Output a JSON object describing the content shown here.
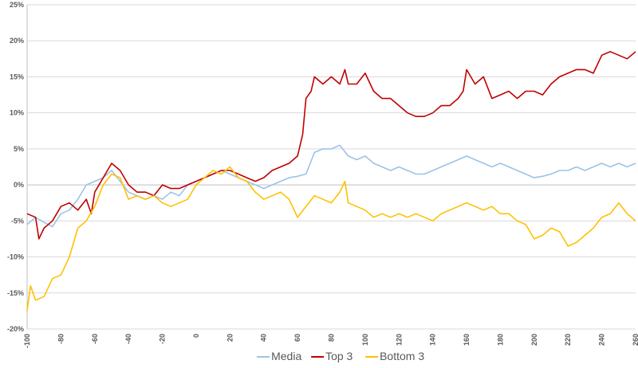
{
  "chart_data": {
    "type": "line",
    "title": "",
    "xlabel": "",
    "ylabel": "",
    "xlim": [
      -100,
      260
    ],
    "ylim": [
      -20,
      25
    ],
    "x_ticks": [
      -100,
      -80,
      -60,
      -40,
      -20,
      0,
      20,
      40,
      60,
      80,
      100,
      120,
      140,
      160,
      180,
      200,
      220,
      240,
      260
    ],
    "y_ticks": [
      -20,
      -15,
      -10,
      -5,
      0,
      5,
      10,
      15,
      20,
      25
    ],
    "y_tick_labels": [
      "-20%",
      "-15%",
      "-10%",
      "-5%",
      "0%",
      "5%",
      "10%",
      "15%",
      "20%",
      "25%"
    ],
    "grid": "horizontal",
    "legend_position": "bottom",
    "series": [
      {
        "name": "Media",
        "color": "#9dc3e6",
        "points": [
          [
            -100,
            -5.5
          ],
          [
            -95,
            -4.5
          ],
          [
            -90,
            -5.2
          ],
          [
            -85,
            -5.8
          ],
          [
            -80,
            -4
          ],
          [
            -75,
            -3.5
          ],
          [
            -70,
            -2
          ],
          [
            -65,
            0
          ],
          [
            -60,
            0.5
          ],
          [
            -55,
            1
          ],
          [
            -50,
            2
          ],
          [
            -45,
            0.5
          ],
          [
            -40,
            -1
          ],
          [
            -35,
            -1.5
          ],
          [
            -30,
            -2
          ],
          [
            -25,
            -1.5
          ],
          [
            -20,
            -2
          ],
          [
            -15,
            -1
          ],
          [
            -10,
            -1.5
          ],
          [
            -5,
            0
          ],
          [
            0,
            0.5
          ],
          [
            5,
            1
          ],
          [
            10,
            1.5
          ],
          [
            15,
            2
          ],
          [
            20,
            1.5
          ],
          [
            25,
            1
          ],
          [
            30,
            0.5
          ],
          [
            35,
            0
          ],
          [
            40,
            -0.5
          ],
          [
            45,
            0
          ],
          [
            50,
            0.5
          ],
          [
            55,
            1
          ],
          [
            60,
            1.2
          ],
          [
            65,
            1.5
          ],
          [
            70,
            4.5
          ],
          [
            75,
            5
          ],
          [
            80,
            5
          ],
          [
            85,
            5.5
          ],
          [
            90,
            4
          ],
          [
            95,
            3.5
          ],
          [
            100,
            4
          ],
          [
            105,
            3
          ],
          [
            110,
            2.5
          ],
          [
            115,
            2
          ],
          [
            120,
            2.5
          ],
          [
            125,
            2
          ],
          [
            130,
            1.5
          ],
          [
            135,
            1.5
          ],
          [
            140,
            2
          ],
          [
            145,
            2.5
          ],
          [
            150,
            3
          ],
          [
            155,
            3.5
          ],
          [
            160,
            4
          ],
          [
            165,
            3.5
          ],
          [
            170,
            3
          ],
          [
            175,
            2.5
          ],
          [
            180,
            3
          ],
          [
            185,
            2.5
          ],
          [
            190,
            2
          ],
          [
            195,
            1.5
          ],
          [
            200,
            1
          ],
          [
            205,
            1.2
          ],
          [
            210,
            1.5
          ],
          [
            215,
            2
          ],
          [
            220,
            2
          ],
          [
            225,
            2.5
          ],
          [
            230,
            2
          ],
          [
            235,
            2.5
          ],
          [
            240,
            3
          ],
          [
            245,
            2.5
          ],
          [
            250,
            3
          ],
          [
            255,
            2.5
          ],
          [
            260,
            3
          ]
        ]
      },
      {
        "name": "Top 3",
        "color": "#c00000",
        "points": [
          [
            -100,
            -4
          ],
          [
            -95,
            -4.5
          ],
          [
            -93,
            -7.5
          ],
          [
            -90,
            -6
          ],
          [
            -85,
            -5
          ],
          [
            -80,
            -3
          ],
          [
            -75,
            -2.5
          ],
          [
            -70,
            -3.5
          ],
          [
            -65,
            -2
          ],
          [
            -62,
            -4
          ],
          [
            -60,
            -1
          ],
          [
            -55,
            1
          ],
          [
            -50,
            3
          ],
          [
            -45,
            2
          ],
          [
            -40,
            0
          ],
          [
            -35,
            -1
          ],
          [
            -30,
            -1
          ],
          [
            -25,
            -1.5
          ],
          [
            -20,
            0
          ],
          [
            -15,
            -0.5
          ],
          [
            -10,
            -0.5
          ],
          [
            -5,
            0
          ],
          [
            0,
            0.5
          ],
          [
            5,
            1
          ],
          [
            10,
            1.5
          ],
          [
            15,
            2
          ],
          [
            20,
            2
          ],
          [
            25,
            1.5
          ],
          [
            30,
            1
          ],
          [
            35,
            0.5
          ],
          [
            40,
            1
          ],
          [
            45,
            2
          ],
          [
            50,
            2.5
          ],
          [
            55,
            3
          ],
          [
            60,
            4
          ],
          [
            63,
            7
          ],
          [
            65,
            12
          ],
          [
            68,
            13
          ],
          [
            70,
            15
          ],
          [
            75,
            14
          ],
          [
            80,
            15
          ],
          [
            85,
            14
          ],
          [
            88,
            16
          ],
          [
            90,
            14
          ],
          [
            95,
            14
          ],
          [
            100,
            15.5
          ],
          [
            105,
            13
          ],
          [
            110,
            12
          ],
          [
            115,
            12
          ],
          [
            120,
            11
          ],
          [
            125,
            10
          ],
          [
            130,
            9.5
          ],
          [
            135,
            9.5
          ],
          [
            140,
            10
          ],
          [
            145,
            11
          ],
          [
            150,
            11
          ],
          [
            155,
            12
          ],
          [
            158,
            13
          ],
          [
            160,
            16
          ],
          [
            165,
            14
          ],
          [
            170,
            15
          ],
          [
            175,
            12
          ],
          [
            180,
            12.5
          ],
          [
            185,
            13
          ],
          [
            190,
            12
          ],
          [
            195,
            13
          ],
          [
            200,
            13
          ],
          [
            205,
            12.5
          ],
          [
            210,
            14
          ],
          [
            215,
            15
          ],
          [
            220,
            15.5
          ],
          [
            225,
            16
          ],
          [
            230,
            16
          ],
          [
            235,
            15.5
          ],
          [
            240,
            18
          ],
          [
            245,
            18.5
          ],
          [
            250,
            18
          ],
          [
            255,
            17.5
          ],
          [
            260,
            18.5
          ]
        ]
      },
      {
        "name": "Bottom 3",
        "color": "#ffc000",
        "points": [
          [
            -100,
            -17.5
          ],
          [
            -98,
            -14
          ],
          [
            -95,
            -16
          ],
          [
            -90,
            -15.5
          ],
          [
            -85,
            -13
          ],
          [
            -80,
            -12.5
          ],
          [
            -75,
            -10
          ],
          [
            -70,
            -6
          ],
          [
            -65,
            -5
          ],
          [
            -60,
            -3
          ],
          [
            -55,
            0
          ],
          [
            -50,
            1.5
          ],
          [
            -45,
            1
          ],
          [
            -40,
            -2
          ],
          [
            -35,
            -1.5
          ],
          [
            -30,
            -2
          ],
          [
            -25,
            -1.5
          ],
          [
            -20,
            -2.5
          ],
          [
            -15,
            -3
          ],
          [
            -10,
            -2.5
          ],
          [
            -5,
            -2
          ],
          [
            0,
            0
          ],
          [
            5,
            1
          ],
          [
            10,
            2
          ],
          [
            15,
            1.5
          ],
          [
            20,
            2.5
          ],
          [
            25,
            1
          ],
          [
            30,
            0.5
          ],
          [
            35,
            -1
          ],
          [
            40,
            -2
          ],
          [
            45,
            -1.5
          ],
          [
            50,
            -1
          ],
          [
            55,
            -2
          ],
          [
            60,
            -4.5
          ],
          [
            65,
            -3
          ],
          [
            70,
            -1.5
          ],
          [
            75,
            -2
          ],
          [
            80,
            -2.5
          ],
          [
            85,
            -1
          ],
          [
            88,
            0.5
          ],
          [
            90,
            -2.5
          ],
          [
            95,
            -3
          ],
          [
            100,
            -3.5
          ],
          [
            105,
            -4.5
          ],
          [
            110,
            -4
          ],
          [
            115,
            -4.5
          ],
          [
            120,
            -4
          ],
          [
            125,
            -4.5
          ],
          [
            130,
            -4
          ],
          [
            135,
            -4.5
          ],
          [
            140,
            -5
          ],
          [
            145,
            -4
          ],
          [
            150,
            -3.5
          ],
          [
            155,
            -3
          ],
          [
            160,
            -2.5
          ],
          [
            165,
            -3
          ],
          [
            170,
            -3.5
          ],
          [
            175,
            -3
          ],
          [
            180,
            -4
          ],
          [
            185,
            -4
          ],
          [
            190,
            -5
          ],
          [
            195,
            -5.5
          ],
          [
            200,
            -7.5
          ],
          [
            205,
            -7
          ],
          [
            210,
            -6
          ],
          [
            215,
            -6.5
          ],
          [
            220,
            -8.5
          ],
          [
            225,
            -8
          ],
          [
            230,
            -7
          ],
          [
            235,
            -6
          ],
          [
            240,
            -4.5
          ],
          [
            245,
            -4
          ],
          [
            250,
            -2.5
          ],
          [
            255,
            -4
          ],
          [
            260,
            -5
          ]
        ]
      }
    ]
  }
}
